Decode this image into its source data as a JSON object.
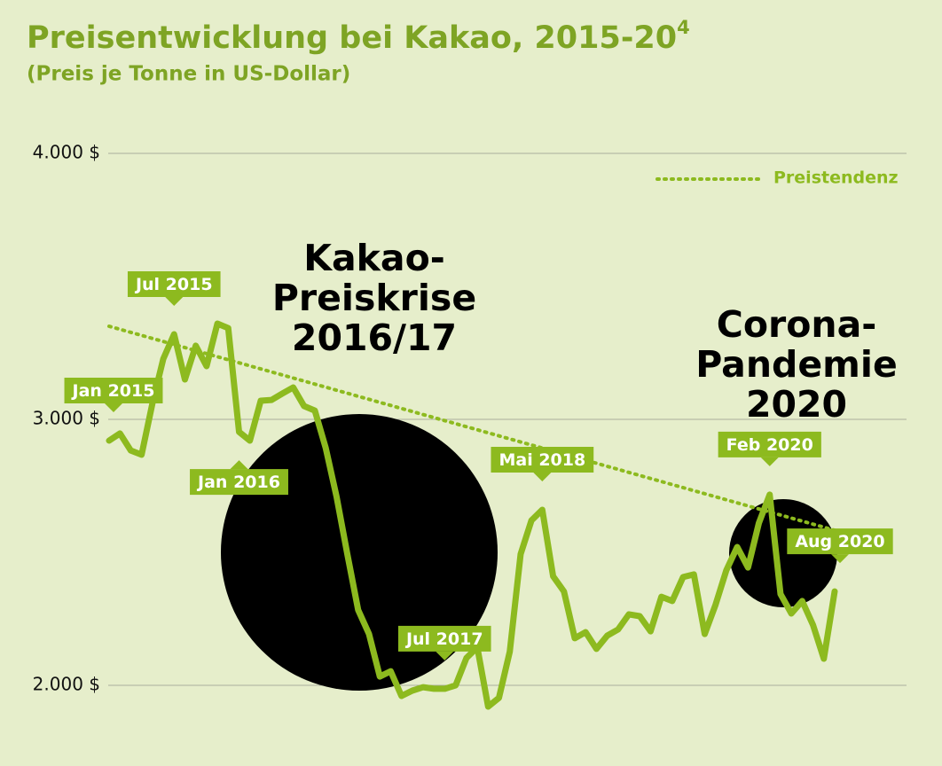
{
  "chart_data": {
    "type": "line",
    "title": "Preisentwicklung bei Kakao, 2015-20",
    "title_footnote": "4",
    "subtitle": "(Preis je Tonne in US-Dollar)",
    "categories": [
      "Jan 2015",
      null,
      null,
      null,
      null,
      null,
      "Jul 2015",
      null,
      null,
      null,
      null,
      null,
      "Jan 2016",
      null,
      null,
      null,
      null,
      null,
      null,
      null,
      null,
      null,
      null,
      null,
      null,
      null,
      null,
      null,
      null,
      null,
      "Jul 2017",
      null,
      null,
      null,
      null,
      null,
      null,
      null,
      null,
      null,
      "Mai 2018",
      null,
      null,
      null,
      null,
      null,
      null,
      null,
      null,
      null,
      null,
      null,
      null,
      null,
      null,
      null,
      null,
      null,
      null,
      null,
      null,
      "Feb 2020",
      null,
      null,
      null,
      null,
      null,
      "Aug 2020"
    ],
    "series": [
      {
        "name": null,
        "color": "#8dba1f",
        "values": [
          2920,
          2947,
          2883,
          2867,
          3060,
          3227,
          3320,
          3150,
          3277,
          3200,
          3360,
          3343,
          2953,
          2920,
          3070,
          3073,
          3097,
          3120,
          3050,
          3033,
          2893,
          2710,
          2493,
          2283,
          2193,
          2033,
          2053,
          1960,
          1980,
          1993,
          1987,
          1987,
          2000,
          2103,
          2143,
          1920,
          1953,
          2127,
          2493,
          2620,
          2660,
          2410,
          2353,
          2177,
          2200,
          2137,
          2187,
          2210,
          2267,
          2260,
          2203,
          2333,
          2317,
          2407,
          2417,
          2193,
          2303,
          2433,
          2520,
          2443,
          2610,
          2717,
          2343,
          2270,
          2317,
          2227,
          2100,
          2353
        ]
      }
    ],
    "trend": {
      "name": "Preistendenz",
      "color": "#8dba1f",
      "values": [
        3350,
        2583
      ]
    },
    "annotations": [
      {
        "lines": [
          "Kakao-",
          "Preiskrise",
          "2016/17"
        ]
      },
      {
        "lines": [
          "Corona-",
          "Pandemie",
          "2020"
        ]
      }
    ],
    "ylim": [
      1700,
      4000
    ],
    "yticks": [
      {
        "value": 2000,
        "label": "2.000 $"
      },
      {
        "value": 3000,
        "label": "3.000 $"
      },
      {
        "value": 4000,
        "label": "4.000 $"
      }
    ],
    "grid": true,
    "legend": "top-right"
  }
}
